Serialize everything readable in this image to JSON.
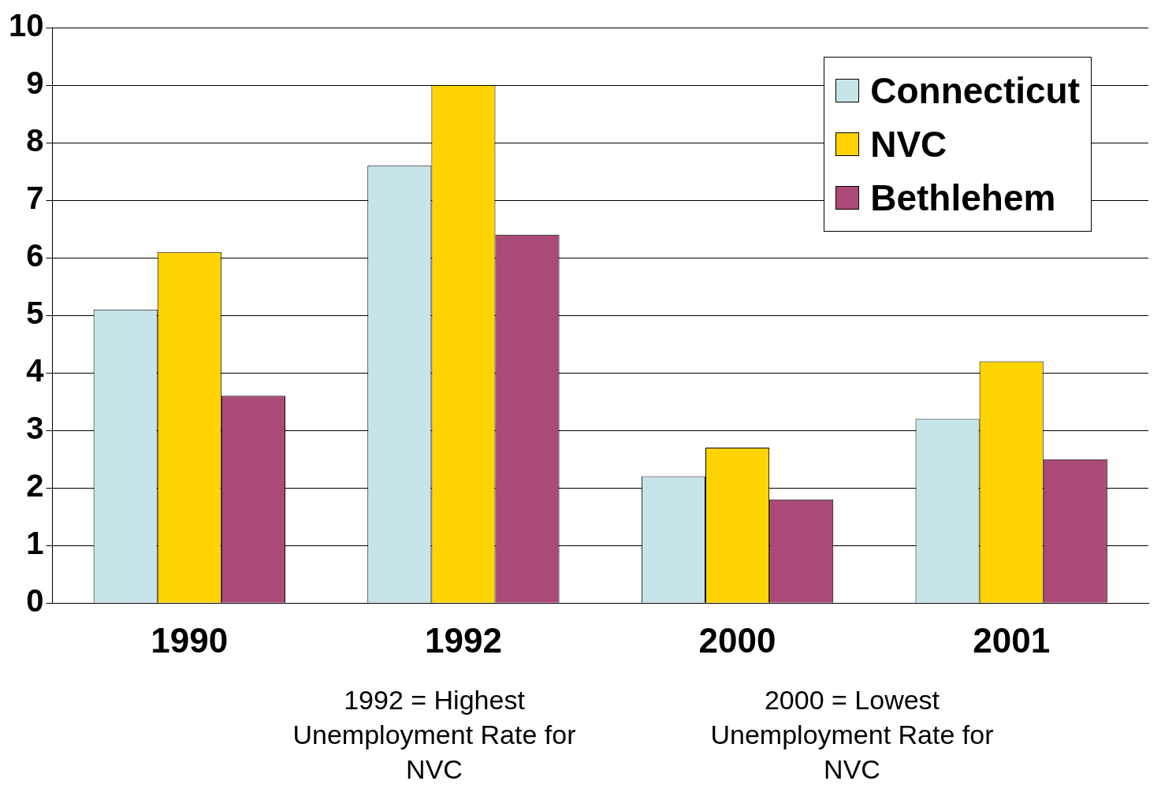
{
  "chart_data": {
    "type": "bar",
    "categories": [
      "1990",
      "1992",
      "2000",
      "2001"
    ],
    "series": [
      {
        "name": "Connecticut",
        "color": "#c7e5e8",
        "values": [
          5.1,
          7.6,
          2.2,
          3.2
        ]
      },
      {
        "name": "NVC",
        "color": "#ffd400",
        "values": [
          6.1,
          9.0,
          2.7,
          4.2
        ]
      },
      {
        "name": "Bethlehem",
        "color": "#ab4a77",
        "values": [
          3.6,
          6.4,
          1.8,
          2.5
        ]
      }
    ],
    "ylim": [
      0,
      10
    ],
    "yticks": [
      0,
      1,
      2,
      3,
      4,
      5,
      6,
      7,
      8,
      9,
      10
    ],
    "grid": "y",
    "legend": "top right",
    "annotations": [
      "1992 = Highest Unemployment Rate for NVC",
      "2000 = Lowest Unemployment Rate for NVC"
    ]
  }
}
